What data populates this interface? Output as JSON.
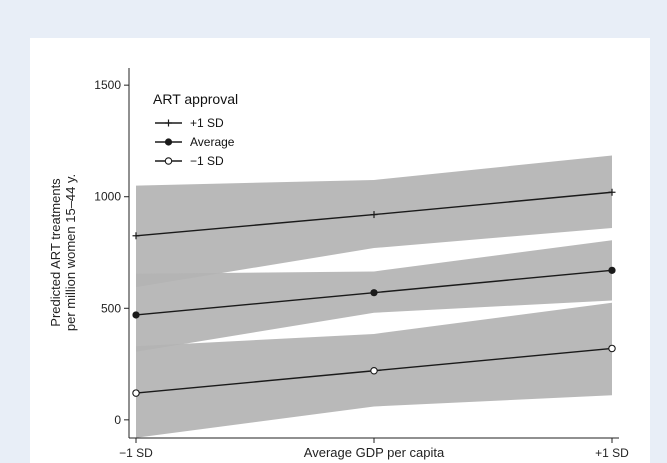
{
  "chart_data": {
    "type": "line",
    "title": "",
    "xlabel": "Average GDP per capita",
    "ylabel_lines": [
      "Predicted ART treatments",
      "per million women 15–44 y."
    ],
    "categories": [
      "−1 SD",
      "",
      "+1 SD"
    ],
    "x": [
      -1,
      0,
      1
    ],
    "ylim": [
      -50,
      1550
    ],
    "yticks": [
      0,
      500,
      1000,
      1500
    ],
    "grid": false,
    "legend": {
      "title": "ART approval",
      "placement": "top-left",
      "entries": [
        "+1 SD",
        "Average",
        "−1 SD"
      ]
    },
    "series": [
      {
        "name": "+1 SD",
        "marker": "plus",
        "values": [
          825,
          920,
          1020
        ],
        "lower": [
          595,
          770,
          860
        ],
        "upper": [
          1050,
          1075,
          1185
        ]
      },
      {
        "name": "Average",
        "marker": "filled-circle",
        "values": [
          470,
          570,
          670
        ],
        "lower": [
          305,
          480,
          535
        ],
        "upper": [
          655,
          665,
          805
        ]
      },
      {
        "name": "−1 SD",
        "marker": "hollow-circle",
        "values": [
          120,
          220,
          320
        ],
        "lower": [
          -80,
          60,
          110
        ],
        "upper": [
          330,
          385,
          525
        ]
      }
    ],
    "colors": {
      "band": "#b3b3b3",
      "line": "#1a1a1a"
    }
  }
}
